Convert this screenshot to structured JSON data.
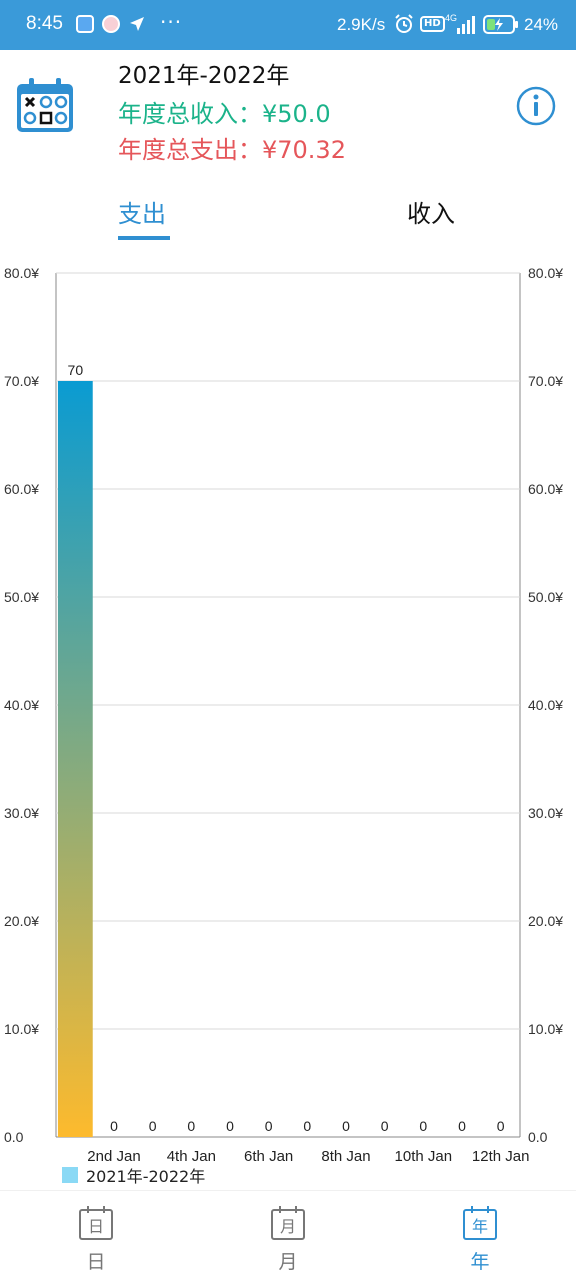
{
  "status_bar": {
    "time": "8:45",
    "overflow": "···",
    "net_speed": "2.9K/s",
    "hd": "HD",
    "network": "4G",
    "battery": "24%",
    "icons": [
      "notification-icon",
      "app-icon",
      "arrow-icon",
      "alarm-icon",
      "signal-icon",
      "battery-icon"
    ]
  },
  "header": {
    "year_range": "2021年-2022年",
    "income_total": "年度总收入：¥50.0",
    "expense_total": "年度总支出：¥70.32",
    "icon": "calendar-icon",
    "info_icon": "info-icon"
  },
  "tabs": [
    {
      "label": "支出",
      "active": true
    },
    {
      "label": "收入",
      "active": false
    }
  ],
  "colors": {
    "primary": "#2f8fd1",
    "income": "#1bb38a",
    "expense": "#e5565a",
    "bar_top": "#0a9bd2",
    "bar_bottom": "#fdba2d"
  },
  "chart_data": {
    "type": "bar",
    "title": "",
    "xlabel": "",
    "ylabel": "",
    "ylim": [
      0,
      80
    ],
    "y_ticks": [
      "0.0",
      "10.0¥",
      "20.0¥",
      "30.0¥",
      "40.0¥",
      "50.0¥",
      "60.0¥",
      "70.0¥",
      "80.0¥"
    ],
    "x_tick_labels": [
      "2nd Jan",
      "4th Jan",
      "6th Jan",
      "8th Jan",
      "10th Jan",
      "12th Jan"
    ],
    "series": [
      {
        "name": "2021年-2022年",
        "values": [
          70,
          0,
          0,
          0,
          0,
          0,
          0,
          0,
          0,
          0,
          0,
          0
        ],
        "labels": [
          "70",
          "0",
          "0",
          "0",
          "0",
          "0",
          "0",
          "0",
          "0",
          "0",
          "0",
          "0"
        ]
      }
    ],
    "grid": true,
    "legend": "bottom-left"
  },
  "legend": {
    "label": "2021年-2022年"
  },
  "bottom_nav": [
    {
      "label": "日",
      "icon_char": "日",
      "active": false
    },
    {
      "label": "月",
      "icon_char": "月",
      "active": false
    },
    {
      "label": "年",
      "icon_char": "年",
      "active": true
    }
  ]
}
